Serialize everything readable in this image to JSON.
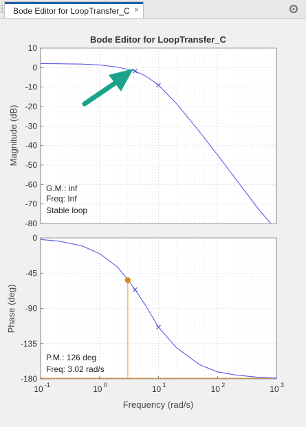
{
  "window": {
    "tab_title": "Bode Editor for LoopTransfer_C",
    "close_glyph": "×",
    "menu_icon": "gear-circle-icon"
  },
  "plot": {
    "title": "Bode Editor for LoopTransfer_C",
    "magnitude_axis": {
      "ylabel": "Magnitude (dB)",
      "ylim": [
        -80,
        10
      ],
      "yticks": [
        "10",
        "0",
        "-10",
        "-20",
        "-30",
        "-40",
        "-50",
        "-60",
        "-70",
        "-80"
      ]
    },
    "phase_axis": {
      "ylabel": "Phase (deg)",
      "ylim": [
        -180,
        0
      ],
      "yticks": [
        "0",
        "-45",
        "-90",
        "-135",
        "-180"
      ]
    },
    "x_axis": {
      "xlabel": "Frequency (rad/s)",
      "xscale": "log",
      "xlim": [
        0.1,
        1000
      ],
      "xticks_base": [
        "10",
        "10",
        "10",
        "10",
        "10"
      ],
      "xticks_exp": [
        "-1",
        "0",
        "1",
        "2",
        "3"
      ]
    },
    "gain_margin": {
      "gm": "G.M.: inf",
      "freq": "Freq: Inf",
      "status": "Stable loop"
    },
    "phase_margin": {
      "pm": "P.M.: 126 deg",
      "freq": "Freq: 3.02 rad/s",
      "pm_frequency": 3.02,
      "pm_phase": -54
    },
    "poles_marked": [
      4,
      10
    ],
    "colors": {
      "response": "#5a5ae6",
      "margin": "#e0952a",
      "annotation_arrow": "#1aa38a",
      "axes_bg": "#ffffff",
      "grid": "#d8d8d8"
    }
  },
  "chart_data": [
    {
      "type": "line",
      "title": "Bode Editor for LoopTransfer_C",
      "ylabel": "Magnitude (dB)",
      "xscale": "log",
      "xlim": [
        0.1,
        1000
      ],
      "ylim": [
        -80,
        10
      ],
      "grid": true,
      "series": [
        {
          "x": [
            0.1,
            0.2,
            0.5,
            1,
            2,
            3,
            4,
            6,
            10,
            20,
            50,
            100,
            200,
            500,
            800
          ],
          "y": [
            2.1,
            2.0,
            1.8,
            1.4,
            0.3,
            -0.9,
            -1.8,
            -4.2,
            -9.0,
            -18.3,
            -33.0,
            -44.8,
            -56.8,
            -72.8,
            -80.0
          ]
        }
      ],
      "markers": [
        {
          "x": 4,
          "y": -1.8
        },
        {
          "x": 10,
          "y": -9.0
        }
      ]
    },
    {
      "type": "line",
      "ylabel": "Phase (deg)",
      "xlabel": "Frequency (rad/s)",
      "xscale": "log",
      "xlim": [
        0.1,
        1000
      ],
      "ylim": [
        -180,
        0
      ],
      "grid": true,
      "series": [
        {
          "x": [
            0.1,
            0.2,
            0.5,
            1,
            2,
            3,
            4,
            6,
            10,
            20,
            50,
            100,
            200,
            500,
            1000
          ],
          "y": [
            -2,
            -4,
            -10,
            -20,
            -37,
            -53,
            -66,
            -86,
            -114,
            -140,
            -162,
            -171,
            -175,
            -178,
            -179
          ]
        }
      ],
      "markers": [
        {
          "x": 4,
          "y": -66
        },
        {
          "x": 10,
          "y": -114
        }
      ],
      "margin_point": {
        "x": 3.02,
        "y": -54
      }
    }
  ]
}
